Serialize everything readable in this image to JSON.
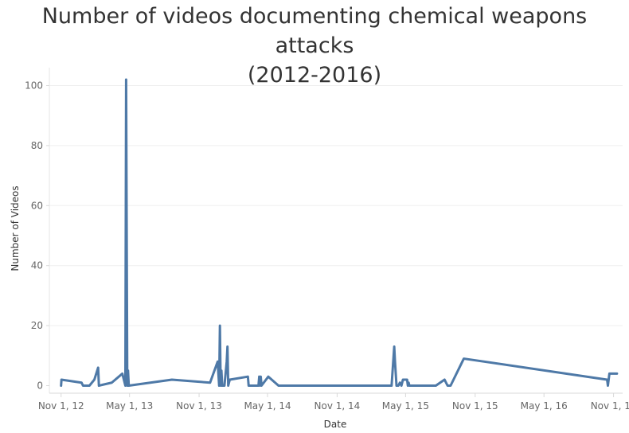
{
  "chart_data": {
    "type": "line",
    "title_lines": [
      "Number of videos documenting chemical weapons attacks",
      "(2012-2016)"
    ],
    "xlabel": "Date",
    "ylabel": "Number of Videos",
    "ylim": [
      0,
      102
    ],
    "yticks": [
      0,
      20,
      40,
      60,
      80,
      100
    ],
    "xticks": [
      "2012-11-01",
      "2013-05-01",
      "2013-11-01",
      "2014-05-01",
      "2014-11-01",
      "2015-05-01",
      "2015-11-01",
      "2016-05-01",
      "2016-11-01"
    ],
    "xtick_labels": [
      "Nov 1, 12",
      "May 1, 13",
      "Nov 1, 13",
      "May 1, 14",
      "Nov 1, 14",
      "May 1, 15",
      "Nov 1, 15",
      "May 1, 16",
      "Nov 1, 16"
    ],
    "xlim": [
      "2012-10-01",
      "2016-11-25"
    ],
    "grid": true,
    "color": "#4e79a7",
    "series": [
      {
        "points": [
          [
            "2012-11-01",
            0
          ],
          [
            "2012-11-02",
            2
          ],
          [
            "2012-12-25",
            1
          ],
          [
            "2012-12-29",
            0
          ],
          [
            "2013-01-15",
            0
          ],
          [
            "2013-01-28",
            2
          ],
          [
            "2013-02-07",
            6
          ],
          [
            "2013-02-09",
            0
          ],
          [
            "2013-03-15",
            1
          ],
          [
            "2013-04-12",
            4
          ],
          [
            "2013-04-20",
            0
          ],
          [
            "2013-04-22",
            102
          ],
          [
            "2013-04-25",
            0
          ],
          [
            "2013-04-27",
            5
          ],
          [
            "2013-04-29",
            0
          ],
          [
            "2013-08-21",
            2
          ],
          [
            "2013-11-30",
            1
          ],
          [
            "2013-12-20",
            8
          ],
          [
            "2013-12-24",
            0
          ],
          [
            "2013-12-26",
            20
          ],
          [
            "2013-12-28",
            0
          ],
          [
            "2013-12-30",
            5
          ],
          [
            "2014-01-01",
            0
          ],
          [
            "2014-01-07",
            0
          ],
          [
            "2014-01-13",
            8
          ],
          [
            "2014-01-15",
            13
          ],
          [
            "2014-01-17",
            0
          ],
          [
            "2014-01-21",
            2
          ],
          [
            "2014-03-10",
            3
          ],
          [
            "2014-03-12",
            0
          ],
          [
            "2014-03-20",
            0
          ],
          [
            "2014-04-07",
            0
          ],
          [
            "2014-04-09",
            3
          ],
          [
            "2014-04-11",
            0
          ],
          [
            "2014-04-13",
            3
          ],
          [
            "2014-04-15",
            0
          ],
          [
            "2014-05-03",
            3
          ],
          [
            "2014-05-30",
            0
          ],
          [
            "2015-03-25",
            0
          ],
          [
            "2015-04-01",
            13
          ],
          [
            "2015-04-03",
            8
          ],
          [
            "2015-04-07",
            0
          ],
          [
            "2015-04-12",
            0
          ],
          [
            "2015-04-16",
            1
          ],
          [
            "2015-04-20",
            0
          ],
          [
            "2015-04-24",
            2
          ],
          [
            "2015-05-05",
            2
          ],
          [
            "2015-05-07",
            0
          ],
          [
            "2015-05-09",
            1
          ],
          [
            "2015-05-11",
            0
          ],
          [
            "2015-07-20",
            0
          ],
          [
            "2015-08-12",
            2
          ],
          [
            "2015-08-20",
            0
          ],
          [
            "2015-08-28",
            0
          ],
          [
            "2015-10-02",
            9
          ],
          [
            "2016-10-15",
            2
          ],
          [
            "2016-10-17",
            0
          ],
          [
            "2016-10-21",
            4
          ],
          [
            "2016-11-10",
            4
          ]
        ]
      }
    ]
  }
}
